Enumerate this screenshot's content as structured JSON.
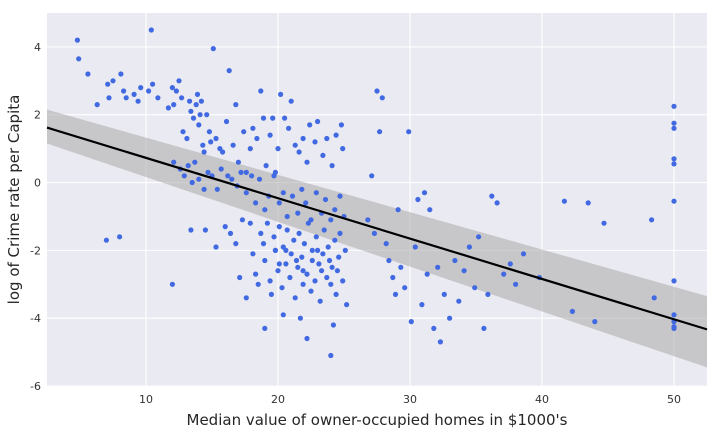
{
  "chart_data": {
    "type": "scatter",
    "title": "",
    "xlabel": "Median value of owner-occupied homes in $1000's",
    "ylabel": "log of Crime rate per Capita",
    "xlim": [
      2.5,
      52.5
    ],
    "ylim": [
      -6,
      5
    ],
    "x_ticks": [
      10,
      20,
      30,
      40,
      50
    ],
    "y_ticks": [
      -6,
      -4,
      -2,
      0,
      2,
      4
    ],
    "grid": true,
    "legend": "none",
    "colors": {
      "background": "#eaeaf2",
      "grid": "#ffffff",
      "points": "#4169e1",
      "regression_line": "#000000",
      "confidence_band": "#aaaaaa"
    },
    "regression": {
      "x": [
        2.5,
        52.5
      ],
      "y": [
        1.62,
        -4.33
      ],
      "ci_lower": [
        1.15,
        -5.45
      ],
      "ci_upper": [
        2.15,
        -3.35
      ]
    },
    "points": [
      [
        4.8,
        4.2
      ],
      [
        4.9,
        3.65
      ],
      [
        5.6,
        3.2
      ],
      [
        6.3,
        2.3
      ],
      [
        7.1,
        2.9
      ],
      [
        7.2,
        2.5
      ],
      [
        7.5,
        3.0
      ],
      [
        8.1,
        3.2
      ],
      [
        8.3,
        2.7
      ],
      [
        8.5,
        2.5
      ],
      [
        9.1,
        2.6
      ],
      [
        9.4,
        2.4
      ],
      [
        9.6,
        2.8
      ],
      [
        10.2,
        2.7
      ],
      [
        10.4,
        4.5
      ],
      [
        10.5,
        2.9
      ],
      [
        10.9,
        2.5
      ],
      [
        11.7,
        2.2
      ],
      [
        12.0,
        2.8
      ],
      [
        12.1,
        2.3
      ],
      [
        12.3,
        2.7
      ],
      [
        12.5,
        3.0
      ],
      [
        12.7,
        2.5
      ],
      [
        12.8,
        1.5
      ],
      [
        13.1,
        1.3
      ],
      [
        13.3,
        2.4
      ],
      [
        13.4,
        2.1
      ],
      [
        13.6,
        1.9
      ],
      [
        13.8,
        2.3
      ],
      [
        13.9,
        2.6
      ],
      [
        14.0,
        1.7
      ],
      [
        14.1,
        2.0
      ],
      [
        14.2,
        2.4
      ],
      [
        14.3,
        1.1
      ],
      [
        14.4,
        0.9
      ],
      [
        14.6,
        2.0
      ],
      [
        14.8,
        1.5
      ],
      [
        14.9,
        1.2
      ],
      [
        15.1,
        3.95
      ],
      [
        15.3,
        1.3
      ],
      [
        15.6,
        1.0
      ],
      [
        15.8,
        0.9
      ],
      [
        16.1,
        1.8
      ],
      [
        16.3,
        3.3
      ],
      [
        16.6,
        1.1
      ],
      [
        16.8,
        2.3
      ],
      [
        17.0,
        0.6
      ],
      [
        17.4,
        1.5
      ],
      [
        17.6,
        0.3
      ],
      [
        17.9,
        1.0
      ],
      [
        18.1,
        1.6
      ],
      [
        18.4,
        1.3
      ],
      [
        18.7,
        2.7
      ],
      [
        18.9,
        1.9
      ],
      [
        19.1,
        0.5
      ],
      [
        19.4,
        1.4
      ],
      [
        19.6,
        1.9
      ],
      [
        19.8,
        0.3
      ],
      [
        20.0,
        1.0
      ],
      [
        20.2,
        2.6
      ],
      [
        20.5,
        1.9
      ],
      [
        20.8,
        1.6
      ],
      [
        21.0,
        2.4
      ],
      [
        21.3,
        1.1
      ],
      [
        21.6,
        0.9
      ],
      [
        21.9,
        1.3
      ],
      [
        22.2,
        0.6
      ],
      [
        22.4,
        1.7
      ],
      [
        22.8,
        1.2
      ],
      [
        23.0,
        1.8
      ],
      [
        23.4,
        0.8
      ],
      [
        23.7,
        1.3
      ],
      [
        24.1,
        0.5
      ],
      [
        24.4,
        1.4
      ],
      [
        24.8,
        1.7
      ],
      [
        24.9,
        1.0
      ],
      [
        12.1,
        0.6
      ],
      [
        12.6,
        0.4
      ],
      [
        12.9,
        0.2
      ],
      [
        13.2,
        0.5
      ],
      [
        13.5,
        0.0
      ],
      [
        13.7,
        0.6
      ],
      [
        14.0,
        0.1
      ],
      [
        14.4,
        -0.2
      ],
      [
        14.7,
        0.3
      ],
      [
        15.0,
        0.2
      ],
      [
        15.4,
        -0.2
      ],
      [
        15.7,
        0.4
      ],
      [
        16.2,
        0.2
      ],
      [
        16.5,
        0.1
      ],
      [
        16.9,
        -0.1
      ],
      [
        17.2,
        0.3
      ],
      [
        17.6,
        -0.3
      ],
      [
        18.0,
        0.2
      ],
      [
        18.3,
        -0.6
      ],
      [
        18.6,
        0.1
      ],
      [
        19.0,
        -0.8
      ],
      [
        19.3,
        -0.4
      ],
      [
        19.7,
        0.2
      ],
      [
        20.1,
        -0.6
      ],
      [
        20.4,
        -0.3
      ],
      [
        20.7,
        -1.0
      ],
      [
        21.1,
        -0.4
      ],
      [
        21.5,
        -0.9
      ],
      [
        21.8,
        -0.2
      ],
      [
        22.1,
        -0.6
      ],
      [
        22.5,
        -1.1
      ],
      [
        22.9,
        -0.3
      ],
      [
        23.3,
        -0.9
      ],
      [
        23.6,
        -0.5
      ],
      [
        24.0,
        -1.1
      ],
      [
        24.3,
        -0.8
      ],
      [
        24.7,
        -0.4
      ],
      [
        25.0,
        -1.0
      ],
      [
        7.0,
        -1.7
      ],
      [
        8.0,
        -1.6
      ],
      [
        12.0,
        -3.0
      ],
      [
        13.4,
        -1.4
      ],
      [
        14.5,
        -1.4
      ],
      [
        15.3,
        -1.9
      ],
      [
        16.0,
        -1.3
      ],
      [
        16.4,
        -1.5
      ],
      [
        16.8,
        -1.8
      ],
      [
        17.1,
        -2.8
      ],
      [
        17.3,
        -1.1
      ],
      [
        17.6,
        -3.4
      ],
      [
        17.9,
        -1.2
      ],
      [
        18.1,
        -2.1
      ],
      [
        18.3,
        -2.7
      ],
      [
        18.5,
        -3.0
      ],
      [
        18.7,
        -1.5
      ],
      [
        18.9,
        -1.8
      ],
      [
        19.0,
        -2.3
      ],
      [
        19.2,
        -1.2
      ],
      [
        19.4,
        -2.9
      ],
      [
        19.5,
        -3.3
      ],
      [
        19.7,
        -1.6
      ],
      [
        19.8,
        -2.0
      ],
      [
        20.0,
        -2.6
      ],
      [
        20.1,
        -1.3
      ],
      [
        20.3,
        -3.1
      ],
      [
        20.4,
        -1.9
      ],
      [
        20.6,
        -2.4
      ],
      [
        20.7,
        -1.4
      ],
      [
        20.9,
        -2.8
      ],
      [
        21.0,
        -2.1
      ],
      [
        21.2,
        -1.7
      ],
      [
        21.3,
        -3.4
      ],
      [
        21.5,
        -2.5
      ],
      [
        21.6,
        -1.5
      ],
      [
        21.8,
        -2.2
      ],
      [
        21.9,
        -3.0
      ],
      [
        22.0,
        -1.8
      ],
      [
        22.2,
        -2.7
      ],
      [
        22.3,
        -1.2
      ],
      [
        22.5,
        -3.2
      ],
      [
        22.6,
        -2.0
      ],
      [
        22.8,
        -2.9
      ],
      [
        22.9,
        -1.6
      ],
      [
        23.1,
        -2.4
      ],
      [
        23.2,
        -3.5
      ],
      [
        23.4,
        -2.1
      ],
      [
        23.5,
        -1.4
      ],
      [
        23.7,
        -2.8
      ],
      [
        23.8,
        -1.9
      ],
      [
        24.0,
        -3.0
      ],
      [
        24.1,
        -2.5
      ],
      [
        24.3,
        -1.7
      ],
      [
        24.4,
        -3.3
      ],
      [
        24.6,
        -2.2
      ],
      [
        24.7,
        -1.5
      ],
      [
        24.9,
        -2.9
      ],
      [
        25.1,
        -2.0
      ],
      [
        25.2,
        -3.6
      ],
      [
        19.0,
        -4.3
      ],
      [
        20.4,
        -3.9
      ],
      [
        21.7,
        -4.0
      ],
      [
        22.2,
        -4.6
      ],
      [
        24.2,
        -4.2
      ],
      [
        24.0,
        -5.1
      ],
      [
        19.8,
        -2.0
      ],
      [
        20.1,
        -2.4
      ],
      [
        20.6,
        -2.0
      ],
      [
        21.4,
        -2.3
      ],
      [
        21.9,
        -2.6
      ],
      [
        22.6,
        -2.3
      ],
      [
        23.0,
        -2.0
      ],
      [
        23.3,
        -2.6
      ],
      [
        23.9,
        -2.3
      ],
      [
        24.5,
        -2.6
      ],
      [
        26.8,
        -1.1
      ],
      [
        27.1,
        0.2
      ],
      [
        27.3,
        -1.5
      ],
      [
        27.5,
        2.7
      ],
      [
        27.7,
        1.5
      ],
      [
        27.9,
        2.5
      ],
      [
        28.2,
        -1.8
      ],
      [
        28.4,
        -2.3
      ],
      [
        28.7,
        -2.8
      ],
      [
        28.9,
        -3.3
      ],
      [
        29.1,
        -0.8
      ],
      [
        29.3,
        -2.5
      ],
      [
        29.6,
        -3.1
      ],
      [
        29.9,
        1.5
      ],
      [
        30.1,
        -4.1
      ],
      [
        30.4,
        -1.9
      ],
      [
        30.6,
        -0.5
      ],
      [
        30.9,
        -3.6
      ],
      [
        31.1,
        -0.3
      ],
      [
        31.3,
        -2.7
      ],
      [
        31.5,
        -0.8
      ],
      [
        31.8,
        -4.3
      ],
      [
        32.1,
        -2.5
      ],
      [
        32.3,
        -4.7
      ],
      [
        32.6,
        -3.3
      ],
      [
        33.0,
        -4.0
      ],
      [
        33.4,
        -2.3
      ],
      [
        33.7,
        -3.5
      ],
      [
        34.1,
        -2.6
      ],
      [
        34.5,
        -1.9
      ],
      [
        34.9,
        -3.1
      ],
      [
        35.2,
        -1.6
      ],
      [
        35.6,
        -4.3
      ],
      [
        35.9,
        -3.3
      ],
      [
        36.2,
        -0.4
      ],
      [
        36.6,
        -0.6
      ],
      [
        37.1,
        -2.7
      ],
      [
        37.6,
        -2.4
      ],
      [
        38.0,
        -3.0
      ],
      [
        38.6,
        -2.1
      ],
      [
        39.8,
        -2.8
      ],
      [
        41.7,
        -0.55
      ],
      [
        42.3,
        -3.8
      ],
      [
        43.5,
        -0.6
      ],
      [
        44.0,
        -4.1
      ],
      [
        44.7,
        -1.2
      ],
      [
        48.3,
        -1.1
      ],
      [
        48.5,
        -3.4
      ],
      [
        50.0,
        2.25
      ],
      [
        50.0,
        1.75
      ],
      [
        50.0,
        1.6
      ],
      [
        50.0,
        0.7
      ],
      [
        50.0,
        0.55
      ],
      [
        50.0,
        -0.55
      ],
      [
        50.0,
        -2.9
      ],
      [
        50.0,
        -3.9
      ],
      [
        50.0,
        -4.1
      ],
      [
        50.0,
        -4.3
      ],
      [
        50.0,
        -4.25
      ]
    ]
  }
}
